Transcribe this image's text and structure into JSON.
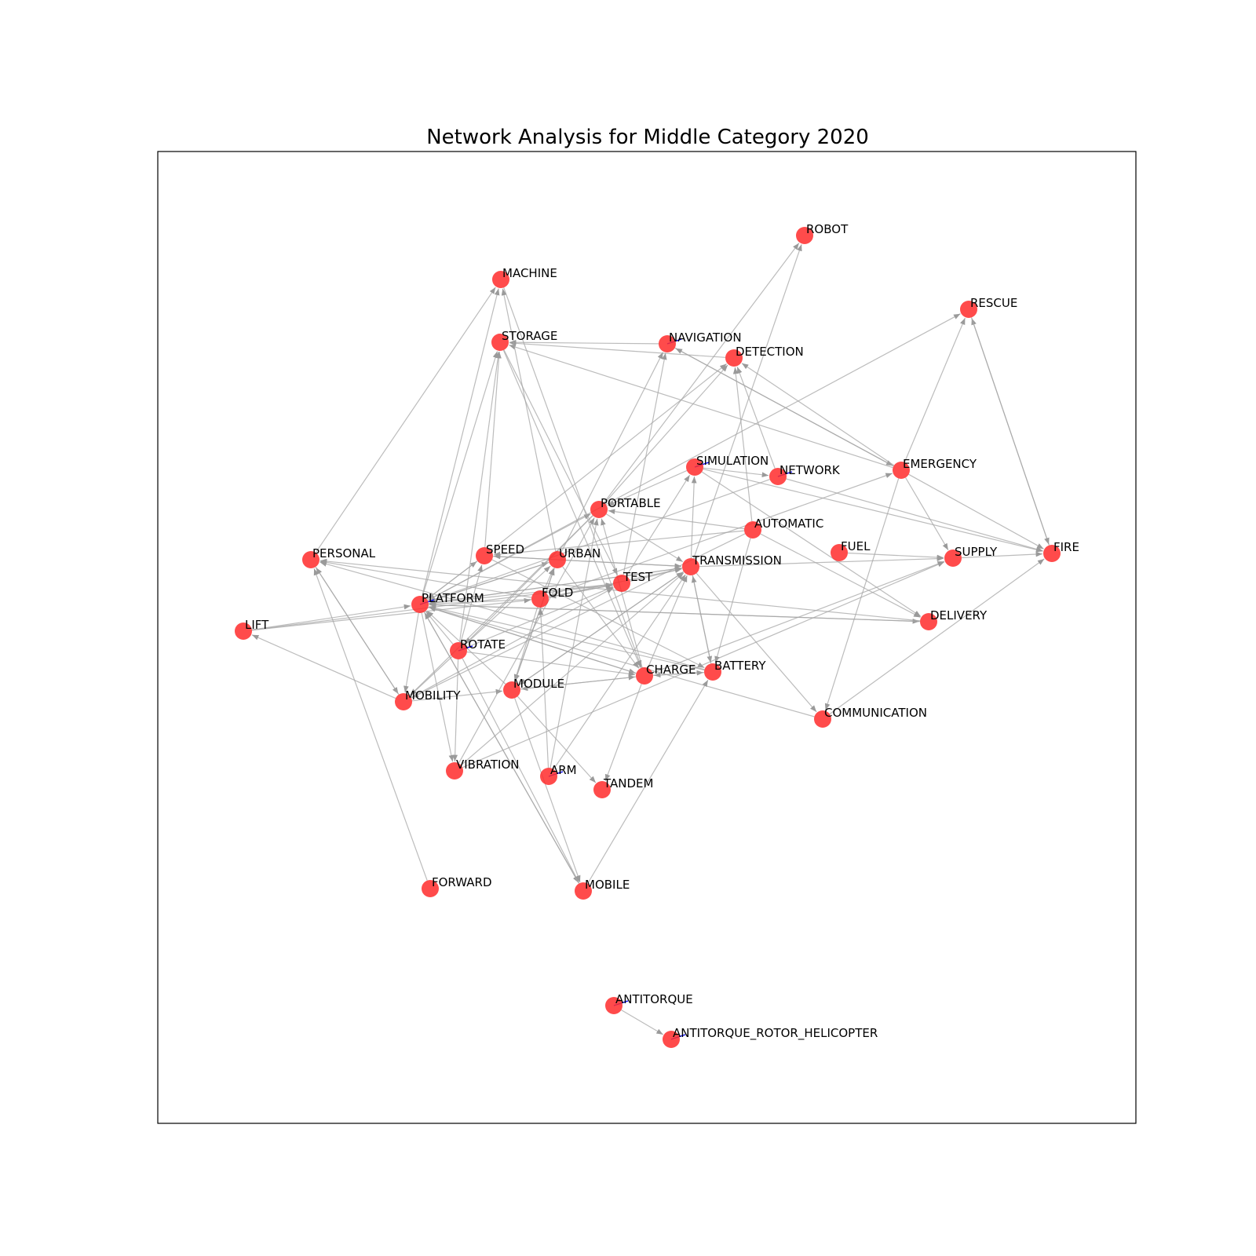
{
  "title": "Network Analysis for Middle Category 2020",
  "colors": {
    "node": "#ff2b2b",
    "edge": "#a6a6a6",
    "self_loop": "#0000ff",
    "frame": "#000000",
    "background": "#ffffff"
  },
  "nodes": [
    {
      "id": "ROBOT",
      "label": "ROBOT"
    },
    {
      "id": "MACHINE",
      "label": "MACHINE"
    },
    {
      "id": "RESCUE",
      "label": "RESCUE"
    },
    {
      "id": "STORAGE",
      "label": "STORAGE"
    },
    {
      "id": "NAVIGATION",
      "label": "NAVIGATION"
    },
    {
      "id": "DETECTION",
      "label": "DETECTION"
    },
    {
      "id": "SIMULATION",
      "label": "SIMULATION"
    },
    {
      "id": "NETWORK",
      "label": "NETWORK"
    },
    {
      "id": "EMERGENCY",
      "label": "EMERGENCY"
    },
    {
      "id": "PORTABLE",
      "label": "PORTABLE"
    },
    {
      "id": "AUTOMATIC",
      "label": "AUTOMATIC"
    },
    {
      "id": "FUEL",
      "label": "FUEL"
    },
    {
      "id": "FIRE",
      "label": "FIRE"
    },
    {
      "id": "PERSONAL",
      "label": "PERSONAL"
    },
    {
      "id": "SPEED",
      "label": "SPEED"
    },
    {
      "id": "URBAN",
      "label": "URBAN"
    },
    {
      "id": "SUPPLY",
      "label": "SUPPLY"
    },
    {
      "id": "TRANSMISSION",
      "label": "TRANSMISSION"
    },
    {
      "id": "TEST",
      "label": "TEST"
    },
    {
      "id": "PLATFORM",
      "label": "PLATFORM"
    },
    {
      "id": "FOLD",
      "label": "FOLD"
    },
    {
      "id": "LIFT",
      "label": "LIFT"
    },
    {
      "id": "DELIVERY",
      "label": "DELIVERY"
    },
    {
      "id": "ROTATE",
      "label": "ROTATE"
    },
    {
      "id": "CHARGE",
      "label": "CHARGE"
    },
    {
      "id": "BATTERY",
      "label": "BATTERY"
    },
    {
      "id": "MODULE",
      "label": "MODULE"
    },
    {
      "id": "MOBILITY",
      "label": "MOBILITY"
    },
    {
      "id": "COMMUNICATION",
      "label": "COMMUNICATION"
    },
    {
      "id": "VIBRATION",
      "label": "VIBRATION"
    },
    {
      "id": "ARM",
      "label": "ARM"
    },
    {
      "id": "TANDEM",
      "label": "TANDEM"
    },
    {
      "id": "FORWARD",
      "label": "FORWARD"
    },
    {
      "id": "MOBILE",
      "label": "MOBILE"
    },
    {
      "id": "ANTITORQUE",
      "label": "ANTITORQUE"
    },
    {
      "id": "ANTITORQUE_ROTOR_HELICOPTER",
      "label": "ANTITORQUE_ROTOR_HELICOPTER"
    }
  ],
  "edges": [
    [
      "PERSONAL",
      "MACHINE"
    ],
    [
      "PERSONAL",
      "MOBILITY"
    ],
    [
      "MOBILITY",
      "PERSONAL"
    ],
    [
      "MOBILITY",
      "LIFT"
    ],
    [
      "FORWARD",
      "PERSONAL"
    ],
    [
      "LIFT",
      "PLATFORM"
    ],
    [
      "LIFT",
      "FOLD"
    ],
    [
      "LIFT",
      "TEST"
    ],
    [
      "PLATFORM",
      "MACHINE"
    ],
    [
      "PLATFORM",
      "STORAGE"
    ],
    [
      "PLATFORM",
      "PORTABLE"
    ],
    [
      "PLATFORM",
      "SPEED"
    ],
    [
      "PLATFORM",
      "URBAN"
    ],
    [
      "PLATFORM",
      "TRANSMISSION"
    ],
    [
      "PLATFORM",
      "VIBRATION"
    ],
    [
      "PLATFORM",
      "MOBILE"
    ],
    [
      "PLATFORM",
      "CHARGE"
    ],
    [
      "PLATFORM",
      "DELIVERY"
    ],
    [
      "PLATFORM",
      "RESCUE"
    ],
    [
      "PLATFORM",
      "MOBILITY"
    ],
    [
      "MACHINE",
      "CHARGE"
    ],
    [
      "STORAGE",
      "CHARGE"
    ],
    [
      "STORAGE",
      "TEST"
    ],
    [
      "NAVIGATION",
      "STORAGE"
    ],
    [
      "NAVIGATION",
      "EMERGENCY"
    ],
    [
      "DETECTION",
      "STORAGE"
    ],
    [
      "EMERGENCY",
      "DETECTION"
    ],
    [
      "EMERGENCY",
      "STORAGE"
    ],
    [
      "EMERGENCY",
      "NAVIGATION"
    ],
    [
      "EMERGENCY",
      "SUPPLY"
    ],
    [
      "EMERGENCY",
      "FIRE"
    ],
    [
      "EMERGENCY",
      "RESCUE"
    ],
    [
      "EMERGENCY",
      "COMMUNICATION"
    ],
    [
      "FIRE",
      "RESCUE"
    ],
    [
      "RESCUE",
      "FIRE"
    ],
    [
      "SIMULATION",
      "NETWORK"
    ],
    [
      "SIMULATION",
      "FIRE"
    ],
    [
      "SIMULATION",
      "DELIVERY"
    ],
    [
      "SIMULATION",
      "PORTABLE"
    ],
    [
      "NETWORK",
      "DETECTION"
    ],
    [
      "NETWORK",
      "FIRE"
    ],
    [
      "NETWORK",
      "PLATFORM"
    ],
    [
      "AUTOMATIC",
      "DETECTION"
    ],
    [
      "AUTOMATIC",
      "PORTABLE"
    ],
    [
      "AUTOMATIC",
      "BATTERY"
    ],
    [
      "AUTOMATIC",
      "DELIVERY"
    ],
    [
      "AUTOMATIC",
      "MOBILITY"
    ],
    [
      "AUTOMATIC",
      "SPEED"
    ],
    [
      "FUEL",
      "SUPPLY"
    ],
    [
      "SUPPLY",
      "FIRE"
    ],
    [
      "PORTABLE",
      "ROBOT"
    ],
    [
      "PORTABLE",
      "DETECTION"
    ],
    [
      "PORTABLE",
      "TRANSMISSION"
    ],
    [
      "PORTABLE",
      "MOBILITY"
    ],
    [
      "PORTABLE",
      "ROTATE"
    ],
    [
      "SPEED",
      "STORAGE"
    ],
    [
      "SPEED",
      "PLATFORM"
    ],
    [
      "SPEED",
      "TRANSMISSION"
    ],
    [
      "SPEED",
      "BATTERY"
    ],
    [
      "SPEED",
      "DETECTION"
    ],
    [
      "URBAN",
      "NAVIGATION"
    ],
    [
      "URBAN",
      "MACHINE"
    ],
    [
      "URBAN",
      "SPEED"
    ],
    [
      "URBAN",
      "TRANSMISSION"
    ],
    [
      "URBAN",
      "CHARGE"
    ],
    [
      "URBAN",
      "MODULE"
    ],
    [
      "URBAN",
      "PLATFORM"
    ],
    [
      "TRANSMISSION",
      "ROBOT"
    ],
    [
      "TRANSMISSION",
      "SIMULATION"
    ],
    [
      "TRANSMISSION",
      "BATTERY"
    ],
    [
      "TRANSMISSION",
      "COMMUNICATION"
    ],
    [
      "TRANSMISSION",
      "MODULE"
    ],
    [
      "TRANSMISSION",
      "PLATFORM"
    ],
    [
      "TRANSMISSION",
      "SUPPLY"
    ],
    [
      "TEST",
      "SIMULATION"
    ],
    [
      "TEST",
      "NAVIGATION"
    ],
    [
      "TEST",
      "TRANSMISSION"
    ],
    [
      "TEST",
      "PLATFORM"
    ],
    [
      "TEST",
      "FOLD"
    ],
    [
      "FOLD",
      "URBAN"
    ],
    [
      "FOLD",
      "TEST"
    ],
    [
      "FOLD",
      "TRANSMISSION"
    ],
    [
      "FOLD",
      "MODULE"
    ],
    [
      "FOLD",
      "PLATFORM"
    ],
    [
      "FOLD",
      "EMERGENCY"
    ],
    [
      "FOLD",
      "PERSONAL"
    ],
    [
      "ROTATE",
      "SPEED"
    ],
    [
      "ROTATE",
      "URBAN"
    ],
    [
      "ROTATE",
      "STORAGE"
    ],
    [
      "ROTATE",
      "TEST"
    ],
    [
      "ROTATE",
      "CHARGE"
    ],
    [
      "ROTATE",
      "MOBILE"
    ],
    [
      "ROTATE",
      "VIBRATION"
    ],
    [
      "ROTATE",
      "PLATFORM"
    ],
    [
      "ROTATE",
      "MOBILITY"
    ],
    [
      "CHARGE",
      "BATTERY"
    ],
    [
      "CHARGE",
      "MODULE"
    ],
    [
      "CHARGE",
      "TANDEM"
    ],
    [
      "CHARGE",
      "SUPPLY"
    ],
    [
      "CHARGE",
      "TRANSMISSION"
    ],
    [
      "CHARGE",
      "PORTABLE"
    ],
    [
      "CHARGE",
      "PLATFORM"
    ],
    [
      "BATTERY",
      "CHARGE"
    ],
    [
      "BATTERY",
      "TRANSMISSION"
    ],
    [
      "BATTERY",
      "PLATFORM"
    ],
    [
      "BATTERY",
      "PERSONAL"
    ],
    [
      "MODULE",
      "CHARGE"
    ],
    [
      "MODULE",
      "URBAN"
    ],
    [
      "MODULE",
      "TANDEM"
    ],
    [
      "MODULE",
      "TRANSMISSION"
    ],
    [
      "MODULE",
      "PLATFORM"
    ],
    [
      "MODULE",
      "MOBILE"
    ],
    [
      "MOBILITY",
      "MODULE"
    ],
    [
      "MOBILITY",
      "TEST"
    ],
    [
      "COMMUNICATION",
      "FIRE"
    ],
    [
      "COMMUNICATION",
      "PLATFORM"
    ],
    [
      "VIBRATION",
      "TRANSMISSION"
    ],
    [
      "VIBRATION",
      "SUPPLY"
    ],
    [
      "VIBRATION",
      "PORTABLE"
    ],
    [
      "ARM",
      "FOLD"
    ],
    [
      "ARM",
      "TRANSMISSION"
    ],
    [
      "ARM",
      "PORTABLE"
    ],
    [
      "MOBILE",
      "BATTERY"
    ],
    [
      "MOBILE",
      "PLATFORM"
    ],
    [
      "DELIVERY",
      "PLATFORM"
    ],
    [
      "DELIVERY",
      "PERSONAL"
    ],
    [
      "ANTITORQUE",
      "ANTITORQUE_ROTOR_HELICOPTER"
    ]
  ],
  "self_loops": [
    "NAVIGATION",
    "SIMULATION",
    "NETWORK",
    "ANTITORQUE",
    "ANTITORQUE_ROTOR_HELICOPTER",
    "PLATFORM",
    "ROTATE",
    "ARM"
  ]
}
